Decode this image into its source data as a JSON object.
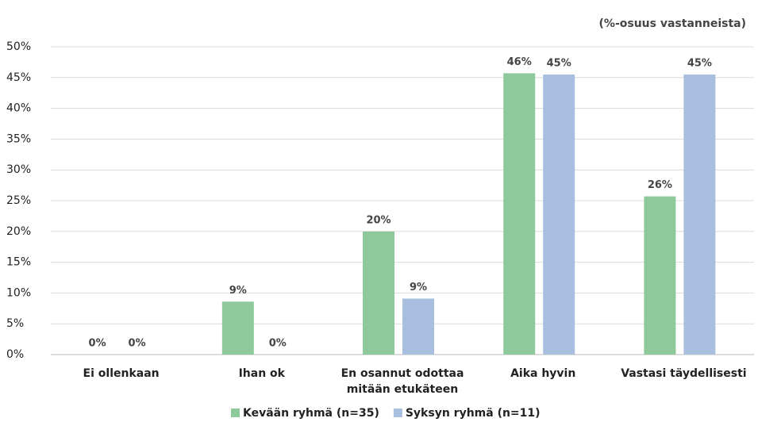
{
  "chart_data": {
    "type": "bar",
    "subtitle": "(%-osuus vastanneista)",
    "categories": [
      "Ei ollenkaan",
      "Ihan ok",
      "En osannut odottaa mitään etukäteen",
      "Aika hyvin",
      "Vastasi täydellisesti"
    ],
    "series": [
      {
        "name": "Kevään ryhmä (n=35)",
        "color": "#8dc99a",
        "values": [
          0,
          8.6,
          20,
          45.7,
          25.7
        ],
        "value_labels": [
          "0%",
          "9%",
          "20%",
          "46%",
          "26%"
        ]
      },
      {
        "name": "Syksyn ryhmä (n=11)",
        "color": "#a9bfe0",
        "values": [
          0,
          0,
          9.1,
          45.5,
          45.5
        ],
        "value_labels": [
          "0%",
          "0%",
          "9%",
          "45%",
          "45%"
        ]
      }
    ],
    "ylim": [
      0,
      50
    ],
    "yticks": [
      {
        "value": 0,
        "label": "0%"
      },
      {
        "value": 5,
        "label": "5%"
      },
      {
        "value": 10,
        "label": "10%"
      },
      {
        "value": 15,
        "label": "15%"
      },
      {
        "value": 20,
        "label": "20%"
      },
      {
        "value": 25,
        "label": "25%"
      },
      {
        "value": 30,
        "label": "30%"
      },
      {
        "value": 35,
        "label": "35%"
      },
      {
        "value": 40,
        "label": "40%"
      },
      {
        "value": 45,
        "label": "45%"
      },
      {
        "value": 50,
        "label": "50%"
      }
    ],
    "grid": true,
    "legend": "bottom"
  }
}
